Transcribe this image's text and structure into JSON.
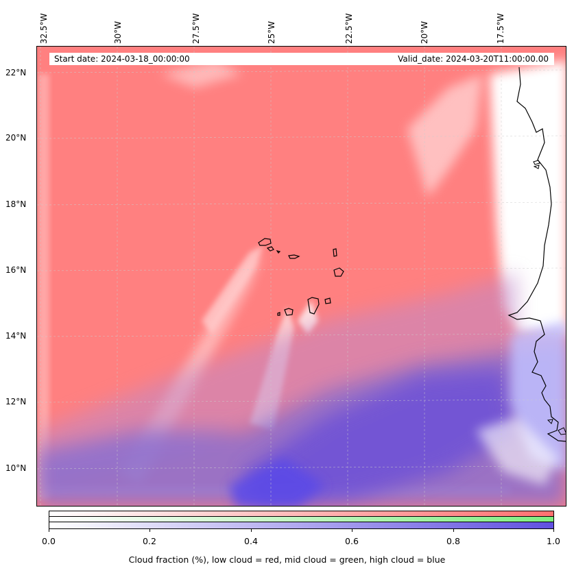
{
  "map": {
    "start_date": "Start date: 2024-03-18_00:00:00",
    "valid_date": "Valid_date: 2024-03-20T11:00:00.00",
    "lon_labels": [
      "32.5°W",
      "30°W",
      "27.5°W",
      "25°W",
      "22.5°W",
      "20°W",
      "17.5°W"
    ],
    "lat_labels": [
      "22°N",
      "20°N",
      "18°N",
      "16°N",
      "14°N",
      "12°N",
      "10°N"
    ],
    "background_color": "#ff8080",
    "low_cloud_color": "#ff8080",
    "mid_cloud_color": "#80ff80",
    "high_cloud_color": "#7060e0"
  },
  "colorbar": {
    "ticks": [
      "0.0",
      "0.2",
      "0.4",
      "0.6",
      "0.8",
      "1.0"
    ],
    "caption": "Cloud fraction (%), low cloud = red, mid cloud = green, high cloud = blue",
    "red_color": "#ff7070",
    "green_color": "#80ee80",
    "blue_color": "#6050e0"
  }
}
